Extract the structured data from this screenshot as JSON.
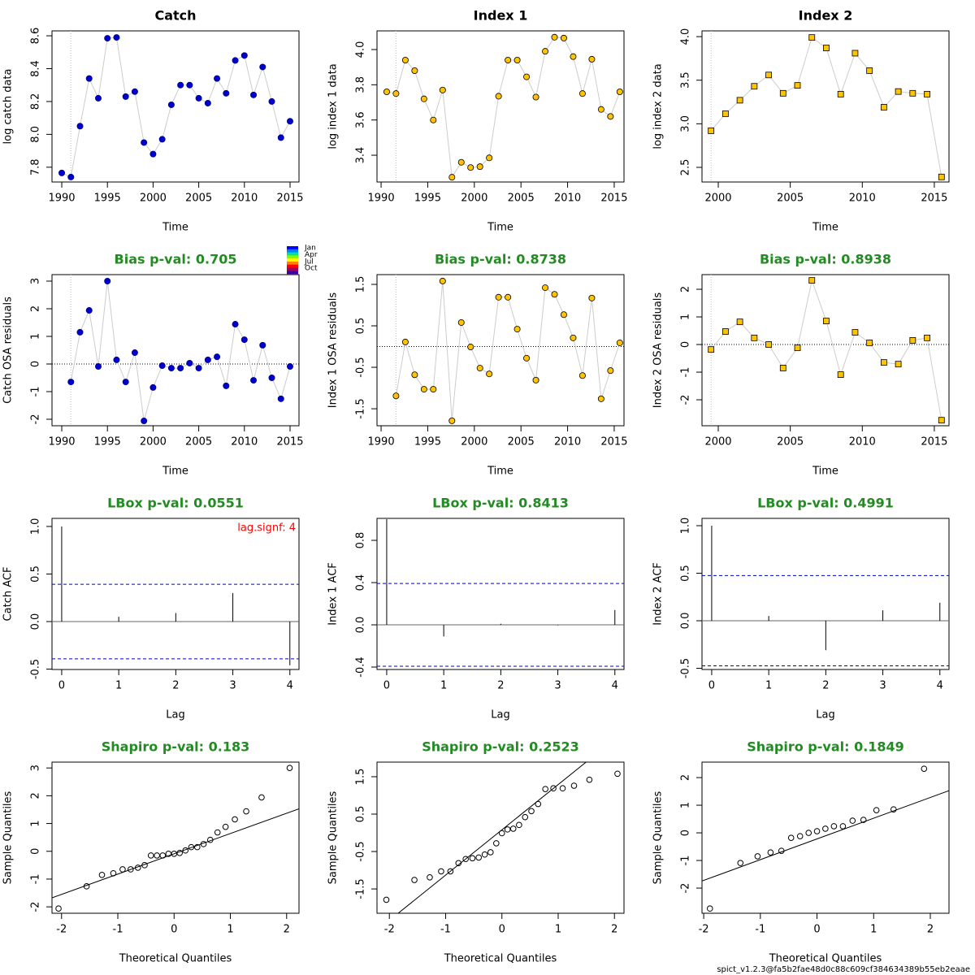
{
  "chart_data": [
    {
      "type": "line",
      "title": "Catch",
      "title_color": "#000000",
      "xlabel": "Time",
      "ylabel": "log catch data",
      "marker": "circle",
      "color": "#0000cd",
      "edge_color": "#00008b",
      "line_color": "#cccccc",
      "vline": 1991,
      "x": [
        1990,
        1991,
        1992,
        1993,
        1994,
        1995,
        1996,
        1997,
        1998,
        1999,
        2000,
        2001,
        2002,
        2003,
        2004,
        2005,
        2006,
        2007,
        2008,
        2009,
        2010,
        2011,
        2012,
        2013,
        2014,
        2015
      ],
      "values": [
        7.765,
        7.74,
        8.05,
        8.34,
        8.22,
        8.585,
        8.59,
        8.23,
        8.26,
        7.95,
        7.88,
        7.97,
        8.18,
        8.3,
        8.3,
        8.22,
        8.19,
        8.34,
        8.25,
        8.45,
        8.48,
        8.24,
        8.41,
        8.2,
        7.98,
        8.08
      ],
      "xlim": [
        1988.93,
        2015.98
      ],
      "ylim": [
        7.71,
        8.63
      ],
      "xticks": [
        1990,
        1995,
        2000,
        2005,
        2010,
        2015
      ],
      "yticks": [
        7.8,
        {
          "value": 8,
          "label": "8.0"
        },
        8.2,
        8.4,
        8.6
      ]
    },
    {
      "type": "line",
      "title": "Index 1",
      "title_color": "#000000",
      "xlabel": "Time",
      "ylabel": "log index 1 data",
      "marker": "circle",
      "color": "#ffc300",
      "edge_color": "#000000",
      "line_color": "#cccccc",
      "vline": 1991.6,
      "x": [
        1990.6,
        1991.6,
        1992.6,
        1993.6,
        1994.6,
        1995.6,
        1996.6,
        1997.6,
        1998.6,
        1999.6,
        2000.6,
        2001.6,
        2002.6,
        2003.6,
        2004.6,
        2005.6,
        2006.6,
        2007.6,
        2008.6,
        2009.6,
        2010.6,
        2011.6,
        2012.6,
        2013.6,
        2014.6,
        2015.6
      ],
      "values": [
        3.76,
        3.75,
        3.94,
        3.88,
        3.72,
        3.6,
        3.77,
        3.275,
        3.36,
        3.33,
        3.335,
        3.385,
        3.735,
        3.94,
        3.94,
        3.845,
        3.73,
        3.99,
        4.07,
        4.065,
        3.96,
        3.75,
        3.945,
        3.66,
        3.62,
        3.76
      ],
      "xlim": [
        1989.56,
        2016.05
      ],
      "ylim": [
        3.248,
        4.106
      ],
      "xticks": [
        1990,
        1995,
        2000,
        2005,
        2010,
        2015
      ],
      "yticks": [
        3.4,
        3.6,
        3.8,
        {
          "value": 4,
          "label": "4.0"
        }
      ]
    },
    {
      "type": "line",
      "title": "Index 2",
      "title_color": "#000000",
      "xlabel": "Time",
      "ylabel": "log index 2 data",
      "marker": "square",
      "color": "#ffc300",
      "edge_color": "#000000",
      "line_color": "#cccccc",
      "vline": 1999.5,
      "x": [
        1999.5,
        2000.5,
        2001.5,
        2002.5,
        2003.5,
        2004.5,
        2005.5,
        2006.5,
        2007.5,
        2008.5,
        2009.5,
        2010.5,
        2011.5,
        2012.5,
        2013.5,
        2014.5,
        2015.5
      ],
      "values": [
        2.92,
        3.115,
        3.27,
        3.43,
        3.56,
        3.35,
        3.44,
        3.99,
        3.87,
        3.34,
        3.81,
        3.61,
        3.19,
        3.37,
        3.35,
        3.34,
        2.39
      ],
      "xlim": [
        1998.87,
        2016.02
      ],
      "ylim": [
        2.332,
        4.066
      ],
      "xticks": [
        2000,
        2005,
        2010,
        2015
      ],
      "yticks": [
        2.5,
        {
          "value": 3,
          "label": "3.0"
        },
        3.5,
        {
          "value": 4,
          "label": "4.0"
        }
      ]
    },
    {
      "type": "line",
      "title": "Bias p-val: 0.705",
      "title_color": "#228b22",
      "xlabel": "Time",
      "ylabel": "Catch OSA residuals",
      "marker": "circle",
      "color": "#0000cd",
      "edge_color": "#00008b",
      "line_color": "#cccccc",
      "vline": 1991,
      "hline": 0,
      "season_legend": {
        "labels": [
          "Jan",
          "Apr",
          "Jul",
          "Oct"
        ],
        "colors": [
          "#0000ff",
          "#0080ff",
          "#00e0a0",
          "#80ff00",
          "#ffff00",
          "#ff8000",
          "#ff0000",
          "#a00060",
          "#4000a0"
        ]
      },
      "x": [
        1991,
        1992,
        1993,
        1994,
        1995,
        1996,
        1997,
        1998,
        1999,
        2000,
        2001,
        2002,
        2003,
        2004,
        2005,
        2006,
        2007,
        2008,
        2009,
        2010,
        2011,
        2012,
        2013,
        2014,
        2015
      ],
      "values": [
        -0.65,
        1.15,
        1.94,
        -0.09,
        3.0,
        0.15,
        -0.65,
        0.41,
        -2.06,
        -0.85,
        -0.06,
        -0.15,
        -0.15,
        0.03,
        -0.15,
        0.15,
        0.26,
        -0.79,
        1.44,
        0.88,
        -0.59,
        0.68,
        -0.5,
        -1.26,
        -0.09
      ],
      "xlim": [
        1988.93,
        2015.98
      ],
      "ylim": [
        -2.235,
        3.235
      ],
      "xticks": [
        1990,
        1995,
        2000,
        2005,
        2010,
        2015
      ],
      "yticks": [
        -2,
        -1,
        0,
        1,
        2,
        3
      ]
    },
    {
      "type": "line",
      "title": "Bias p-val: 0.8738",
      "title_color": "#228b22",
      "xlabel": "Time",
      "ylabel": "Index 1 OSA residuals",
      "marker": "circle",
      "color": "#ffc300",
      "edge_color": "#000000",
      "line_color": "#cccccc",
      "vline": 1991.6,
      "hline": 0,
      "x": [
        1991.6,
        1992.6,
        1993.6,
        1994.6,
        1995.6,
        1996.6,
        1997.6,
        1998.6,
        1999.6,
        2000.6,
        2001.6,
        2002.6,
        2003.6,
        2004.6,
        2005.6,
        2006.6,
        2007.6,
        2008.6,
        2009.6,
        2010.6,
        2011.6,
        2012.6,
        2013.6,
        2014.6,
        2015.6
      ],
      "values": [
        -1.19,
        0.11,
        -0.68,
        -1.03,
        -1.03,
        1.58,
        -1.79,
        0.58,
        -0.01,
        -0.52,
        -0.66,
        1.19,
        1.19,
        0.42,
        -0.28,
        -0.81,
        1.42,
        1.26,
        0.77,
        0.21,
        -0.7,
        1.17,
        -1.26,
        -0.58,
        0.09
      ],
      "xlim": [
        1989.56,
        2016.05
      ],
      "ylim": [
        -1.91,
        1.735
      ],
      "xticks": [
        1990,
        1995,
        2000,
        2005,
        2010,
        2015
      ],
      "yticks": [
        -1.5,
        -0.5,
        0.5,
        1.5
      ]
    },
    {
      "type": "line",
      "title": "Bias p-val: 0.8938",
      "title_color": "#228b22",
      "xlabel": "Time",
      "ylabel": "Index 2 OSA residuals",
      "marker": "square",
      "color": "#ffc300",
      "edge_color": "#000000",
      "line_color": "#cccccc",
      "vline": 1999.5,
      "hline": 0,
      "x": [
        1999.5,
        2000.5,
        2001.5,
        2002.5,
        2003.5,
        2004.5,
        2005.5,
        2006.5,
        2007.5,
        2008.5,
        2009.5,
        2010.5,
        2011.5,
        2012.5,
        2013.5,
        2014.5,
        2015.5
      ],
      "values": [
        -0.18,
        0.47,
        0.82,
        0.24,
        0.0,
        -0.85,
        -0.12,
        2.32,
        0.85,
        -1.09,
        0.44,
        0.06,
        -0.65,
        -0.71,
        0.15,
        0.24,
        -2.74
      ],
      "xlim": [
        1998.87,
        2016.02
      ],
      "ylim": [
        -2.94,
        2.53
      ],
      "xticks": [
        2000,
        2005,
        2010,
        2015
      ],
      "yticks": [
        -2,
        -1,
        0,
        1,
        2
      ]
    },
    {
      "type": "acf",
      "title": "LBox p-val: 0.0551",
      "title_color": "#228b22",
      "xlabel": "Lag",
      "ylabel": "Catch ACF",
      "color": "#000000",
      "ci_color": "#0000cd",
      "annotation": "lag.signf: 4",
      "annotation_color": "#ff0000",
      "x": [
        0,
        1,
        2,
        3,
        4
      ],
      "values": [
        1.0,
        0.05,
        0.09,
        0.3,
        -0.46
      ],
      "ci_lines": [
        0.392,
        -0.392
      ],
      "xlim": [
        -0.17,
        4.16
      ],
      "ylim": [
        -0.504,
        1.085
      ],
      "xticks": [
        0,
        1,
        2,
        3,
        4
      ],
      "yticks": [
        -0.5,
        {
          "value": 0,
          "label": "0.0"
        },
        0.5,
        {
          "value": 1,
          "label": "1.0"
        }
      ]
    },
    {
      "type": "acf",
      "title": "LBox p-val: 0.8413",
      "title_color": "#228b22",
      "xlabel": "Lag",
      "ylabel": "Index 1 ACF",
      "color": "#000000",
      "ci_color": "#0000cd",
      "x": [
        0,
        1,
        2,
        3,
        4
      ],
      "values": [
        1.0,
        -0.11,
        0.01,
        -0.005,
        0.14
      ],
      "ci_lines": [
        0.392,
        -0.392
      ],
      "xlim": [
        -0.17,
        4.16
      ],
      "ylim": [
        -0.423,
        1.008
      ],
      "xticks": [
        0,
        1,
        2,
        3,
        4
      ],
      "yticks": [
        -0.4,
        {
          "value": 0,
          "label": "0.0"
        },
        0.4,
        0.8
      ]
    },
    {
      "type": "acf",
      "title": "LBox p-val: 0.4991",
      "title_color": "#228b22",
      "xlabel": "Lag",
      "ylabel": "Index 2 ACF",
      "color": "#000000",
      "ci_color": "#0000cd",
      "x": [
        0,
        1,
        2,
        3,
        4
      ],
      "values": [
        1.0,
        0.05,
        -0.31,
        0.11,
        0.19
      ],
      "ci_lines": [
        0.475,
        -0.475
      ],
      "xlim": [
        -0.17,
        4.16
      ],
      "ylim": [
        -0.513,
        1.077
      ],
      "xticks": [
        0,
        1,
        2,
        3,
        4
      ],
      "yticks": [
        -0.5,
        {
          "value": 0,
          "label": "0.0"
        },
        0.5,
        {
          "value": 1,
          "label": "1.0"
        }
      ]
    },
    {
      "type": "qq",
      "title": "Shapiro p-val: 0.183",
      "title_color": "#228b22",
      "xlabel": "Theoretical Quantiles",
      "ylabel": "Sample Quantiles",
      "color": "#000000",
      "refline": {
        "intercept": -0.09,
        "slope": 0.73
      },
      "x": [
        -2.054,
        -1.555,
        -1.282,
        -1.08,
        -0.915,
        -0.772,
        -0.643,
        -0.524,
        -0.412,
        -0.305,
        -0.202,
        -0.1,
        0,
        0.1,
        0.202,
        0.305,
        0.412,
        0.524,
        0.643,
        0.772,
        0.915,
        1.08,
        1.282,
        1.555,
        2.054
      ],
      "values": [
        -2.06,
        -1.26,
        -0.85,
        -0.79,
        -0.65,
        -0.65,
        -0.59,
        -0.5,
        -0.15,
        -0.15,
        -0.15,
        -0.09,
        -0.09,
        -0.06,
        0.03,
        0.15,
        0.15,
        0.26,
        0.41,
        0.68,
        0.88,
        1.15,
        1.44,
        1.94,
        3.0
      ],
      "xlim": [
        -2.17,
        2.22
      ],
      "ylim": [
        -2.23,
        3.21
      ],
      "xticks": [
        -2,
        -1,
        0,
        1,
        2
      ],
      "yticks": [
        -2,
        -1,
        0,
        1,
        2,
        3
      ]
    },
    {
      "type": "qq",
      "title": "Shapiro p-val: 0.2523",
      "title_color": "#228b22",
      "xlabel": "Theoretical Quantiles",
      "ylabel": "Sample Quantiles",
      "color": "#000000",
      "refline": {
        "intercept": 0.08,
        "slope": 1.21
      },
      "x": [
        -2.054,
        -1.555,
        -1.282,
        -1.08,
        -0.915,
        -0.772,
        -0.643,
        -0.524,
        -0.412,
        -0.305,
        -0.202,
        -0.1,
        0,
        0.1,
        0.202,
        0.305,
        0.412,
        0.524,
        0.643,
        0.772,
        0.915,
        1.08,
        1.282,
        1.555,
        2.054
      ],
      "values": [
        -1.79,
        -1.26,
        -1.19,
        -1.03,
        -1.03,
        -0.81,
        -0.7,
        -0.68,
        -0.66,
        -0.58,
        -0.52,
        -0.28,
        -0.01,
        0.09,
        0.11,
        0.21,
        0.42,
        0.58,
        0.77,
        1.17,
        1.19,
        1.19,
        1.26,
        1.42,
        1.58
      ],
      "xlim": [
        -2.22,
        2.17
      ],
      "ylim": [
        -2.15,
        1.89
      ],
      "xticks": [
        -2,
        -1,
        0,
        1,
        2
      ],
      "yticks": [
        -1.5,
        -0.5,
        0.5,
        1.5
      ]
    },
    {
      "type": "qq",
      "title": "Shapiro p-val: 0.1849",
      "title_color": "#228b22",
      "xlabel": "Theoretical Quantiles",
      "ylabel": "Sample Quantiles",
      "color": "#000000",
      "refline": {
        "intercept": -0.22,
        "slope": 0.75
      },
      "x": [
        -1.89,
        -1.352,
        -1.049,
        -0.82,
        -0.628,
        -0.457,
        -0.299,
        -0.148,
        0,
        0.148,
        0.299,
        0.457,
        0.628,
        0.82,
        1.049,
        1.352,
        1.89
      ],
      "values": [
        -2.74,
        -1.09,
        -0.85,
        -0.71,
        -0.65,
        -0.18,
        -0.12,
        0.0,
        0.06,
        0.15,
        0.24,
        0.24,
        0.44,
        0.47,
        0.82,
        0.85,
        2.32
      ],
      "xlim": [
        -2.03,
        2.33
      ],
      "ylim": [
        -2.91,
        2.56
      ],
      "xticks": [
        -2,
        -1,
        0,
        1,
        2
      ],
      "yticks": [
        -2,
        -1,
        0,
        1,
        2
      ]
    }
  ],
  "footer": "spict_v1.2.3@fa5b2fae48d0c88c609cf384634389b55eb2eaae"
}
